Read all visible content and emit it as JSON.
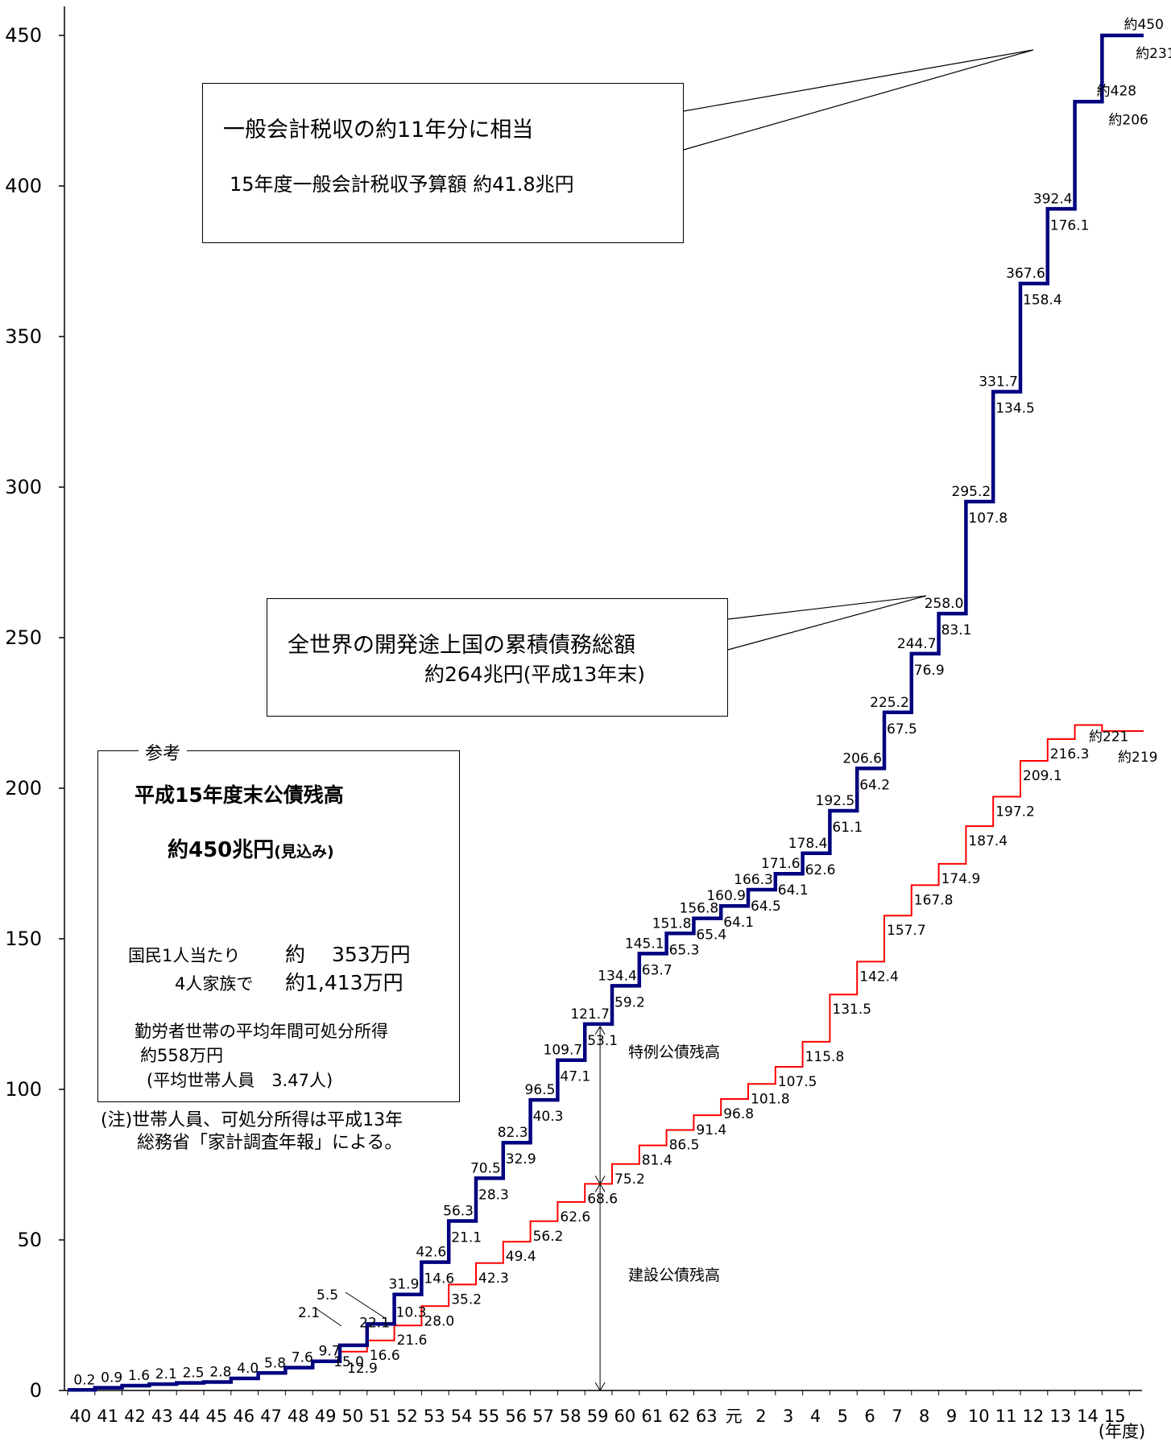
{
  "chart_data": {
    "type": "line",
    "title": "",
    "xlabel": "(年度)",
    "ylabel": "",
    "ylim": [
      0,
      460
    ],
    "y_ticks": [
      0,
      50,
      100,
      150,
      200,
      250,
      300,
      350,
      400,
      450
    ],
    "grid": false,
    "categories": [
      "40",
      "41",
      "42",
      "43",
      "44",
      "45",
      "46",
      "47",
      "48",
      "49",
      "50",
      "51",
      "52",
      "53",
      "54",
      "55",
      "56",
      "57",
      "58",
      "59",
      "60",
      "61",
      "62",
      "63",
      "元",
      "2",
      "3",
      "4",
      "5",
      "6",
      "7",
      "8",
      "9",
      "10",
      "11",
      "12",
      "13",
      "14",
      "15"
    ],
    "series": [
      {
        "name": "",
        "color": "#000080",
        "values": [
          0.2,
          0.9,
          1.6,
          2.1,
          2.5,
          2.8,
          4.0,
          5.8,
          7.6,
          9.7,
          15.0,
          22.1,
          31.9,
          42.6,
          56.3,
          70.5,
          82.3,
          96.5,
          109.7,
          121.7,
          134.4,
          145.1,
          151.8,
          156.8,
          160.9,
          166.3,
          171.6,
          178.4,
          192.5,
          206.6,
          225.2,
          244.7,
          258.0,
          295.2,
          331.7,
          367.6,
          392.4,
          428,
          450
        ],
        "labels": [
          "0.2",
          "0.9",
          "1.6",
          "2.1",
          "2.5",
          "2.8",
          "4.0",
          "5.8",
          "7.6",
          "9.7",
          "15.0",
          "22.1",
          "31.9",
          "42.6",
          "56.3",
          "70.5",
          "82.3",
          "96.5",
          "109.7",
          "121.7",
          "134.4",
          "145.1",
          "151.8",
          "156.8",
          "160.9",
          "166.3",
          "171.6",
          "178.4",
          "192.5",
          "206.6",
          "225.2",
          "244.7",
          "258.0",
          "295.2",
          "331.7",
          "367.6",
          "392.4",
          "約428",
          "約450"
        ]
      },
      {
        "name": "建設公債残高",
        "color": "#ff0000",
        "values": [
          0.2,
          0.9,
          1.6,
          2.1,
          2.5,
          2.8,
          4.0,
          5.8,
          7.6,
          9.7,
          12.9,
          16.6,
          21.6,
          28.0,
          35.2,
          42.3,
          49.4,
          56.2,
          62.6,
          68.6,
          75.2,
          81.4,
          86.5,
          91.4,
          96.8,
          101.8,
          107.5,
          115.8,
          131.5,
          142.4,
          157.7,
          167.8,
          174.9,
          187.4,
          197.2,
          209.1,
          216.3,
          221,
          219
        ],
        "labels": [
          "",
          "",
          "",
          "",
          "",
          "",
          "",
          "",
          "",
          "",
          "12.9",
          "16.6",
          "21.6",
          "28.0",
          "35.2",
          "42.3",
          "49.4",
          "56.2",
          "62.6",
          "68.6",
          "75.2",
          "81.4",
          "86.5",
          "91.4",
          "96.8",
          "101.8",
          "107.5",
          "115.8",
          "131.5",
          "142.4",
          "157.7",
          "167.8",
          "174.9",
          "187.4",
          "197.2",
          "209.1",
          "216.3",
          "約221",
          "約219"
        ]
      },
      {
        "name": "特例公債残高",
        "values": [
          0,
          0,
          0,
          0,
          0,
          0,
          0,
          0,
          0,
          0,
          2.1,
          5.5,
          10.3,
          14.6,
          21.1,
          28.3,
          32.9,
          40.3,
          47.1,
          53.1,
          59.2,
          63.7,
          65.3,
          65.4,
          64.1,
          64.5,
          64.1,
          62.6,
          61.1,
          64.2,
          67.5,
          76.9,
          83.1,
          107.8,
          134.5,
          158.4,
          176.1,
          206,
          231
        ],
        "labels": [
          "",
          "",
          "",
          "",
          "",
          "",
          "",
          "",
          "",
          "",
          "2.1",
          "5.5",
          "10.3",
          "14.6",
          "21.1",
          "28.3",
          "32.9",
          "40.3",
          "47.1",
          "53.1",
          "59.2",
          "63.7",
          "65.3",
          "65.4",
          "64.1",
          "64.5",
          "64.1",
          "62.6",
          "61.1",
          "64.2",
          "67.5",
          "76.9",
          "83.1",
          "107.8",
          "134.5",
          "158.4",
          "176.1",
          "約206",
          "約231"
        ]
      }
    ],
    "annotations": {
      "tax_box": {
        "line1": "一般会計税収の約11年分に相当",
        "line2": "15年度一般会計税収予算額 約41.8兆円"
      },
      "dev_box": {
        "line1": "全世界の開発途上国の累積債務総額",
        "line2": "約264兆円(平成13年末)"
      },
      "ref_box": {
        "legend": "参考",
        "title": "平成15年度末公債残高",
        "amount": "約450兆円",
        "amount_note": "(見込み)",
        "per_capita_label": "国民1人当たり",
        "per_capita_value": "約　 353万円",
        "family_label": "4人家族で",
        "family_value": "約1,413万円",
        "income_label": "勤労者世帯の平均年間可処分所得",
        "income_value": "約558万円",
        "household_note": "(平均世帯人員　3.47人)"
      },
      "footnote_1": "(注)世帯人員、可処分所得は平成13年",
      "footnote_2": "総務省「家計調査年報」による。"
    }
  }
}
